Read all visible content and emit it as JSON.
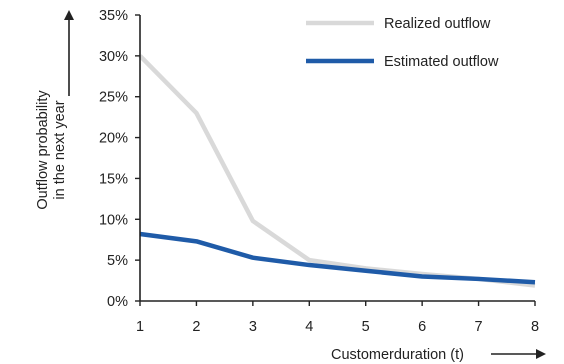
{
  "chart_data": {
    "type": "line",
    "title": "",
    "xlabel": "Customerduration (t)",
    "ylabel_lines": [
      "Outflow probability",
      "in the next year"
    ],
    "x": [
      1,
      2,
      3,
      4,
      5,
      6,
      7,
      8
    ],
    "xlim": [
      1,
      8
    ],
    "ylim": [
      0,
      35
    ],
    "y_ticks": [
      0,
      5,
      10,
      15,
      20,
      25,
      30,
      35
    ],
    "y_tick_labels": [
      "0%",
      "5%",
      "10%",
      "15%",
      "20%",
      "25%",
      "30%",
      "35%"
    ],
    "x_tick_labels": [
      "1",
      "2",
      "3",
      "4",
      "5",
      "6",
      "7",
      "8"
    ],
    "grid": false,
    "legend_position": "top-right",
    "series": [
      {
        "name": "Realized outflow",
        "color": "#d9d9d9",
        "values": [
          30,
          23,
          9.8,
          5,
          4,
          3.3,
          2.7,
          1.9
        ]
      },
      {
        "name": "Estimated outflow",
        "color": "#1f5ba8",
        "values": [
          8.2,
          7.3,
          5.3,
          4.4,
          3.7,
          3.0,
          2.7,
          2.3
        ]
      }
    ]
  }
}
